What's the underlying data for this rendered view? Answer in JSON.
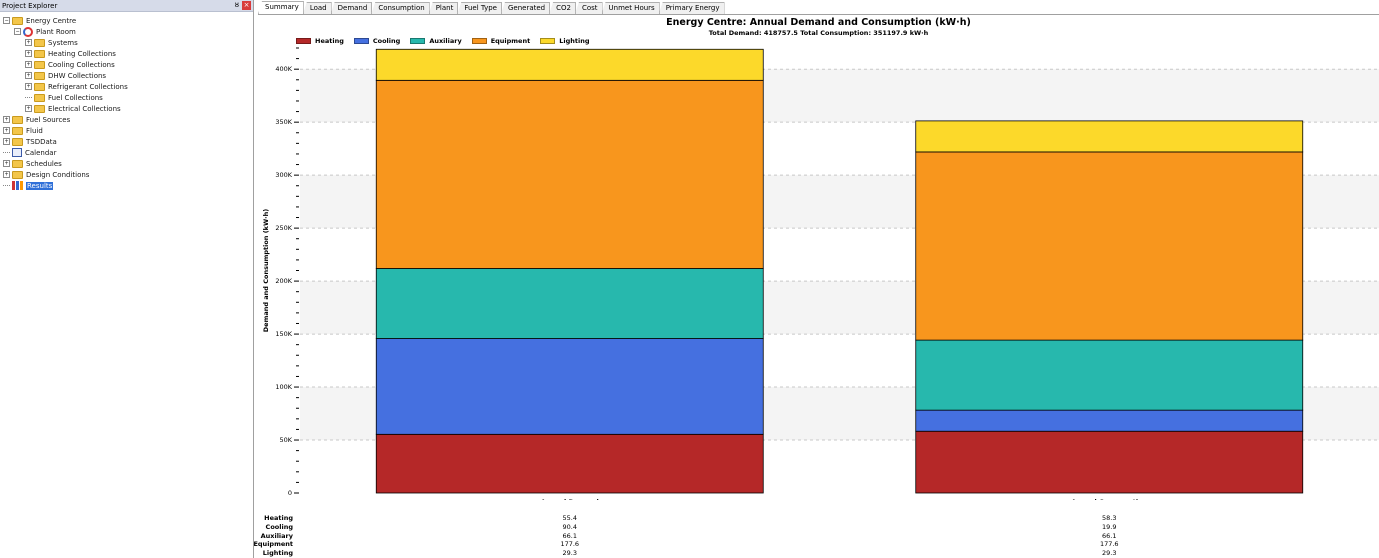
{
  "explorer": {
    "title": "Project Explorer",
    "pin_glyph": "ȣ",
    "close_glyph": "×",
    "nodes": [
      {
        "label": "Energy Centre",
        "icon": "folder-icon",
        "expander": "−",
        "level": 0
      },
      {
        "label": "Plant Room",
        "icon": "plant-room-icon",
        "expander": "−",
        "level": 1
      },
      {
        "label": "Systems",
        "icon": "folder-icon",
        "expander": "+",
        "level": 2
      },
      {
        "label": "Heating Collections",
        "icon": "folder-icon",
        "expander": "+",
        "level": 2
      },
      {
        "label": "Cooling Collections",
        "icon": "folder-icon",
        "expander": "+",
        "level": 2
      },
      {
        "label": "DHW Collections",
        "icon": "folder-icon",
        "expander": "+",
        "level": 2
      },
      {
        "label": "Refrigerant Collections",
        "icon": "folder-icon",
        "expander": "+",
        "level": 2
      },
      {
        "label": "Fuel Collections",
        "icon": "folder-icon",
        "expander": "",
        "level": 2
      },
      {
        "label": "Electrical Collections",
        "icon": "folder-icon",
        "expander": "+",
        "level": 2
      },
      {
        "label": "Fuel Sources",
        "icon": "folder-icon",
        "expander": "+",
        "level": 0
      },
      {
        "label": "Fluid",
        "icon": "folder-icon",
        "expander": "+",
        "level": 0
      },
      {
        "label": "TSDData",
        "icon": "folder-icon",
        "expander": "+",
        "level": 0
      },
      {
        "label": "Calendar",
        "icon": "calendar-icon",
        "expander": "",
        "level": 0
      },
      {
        "label": "Schedules",
        "icon": "folder-icon",
        "expander": "+",
        "level": 0
      },
      {
        "label": "Design Conditions",
        "icon": "folder-icon",
        "expander": "+",
        "level": 0
      },
      {
        "label": "Results",
        "icon": "results-icon",
        "expander": "",
        "level": 0,
        "selected": true
      }
    ]
  },
  "tabs": [
    "Summary",
    "Load",
    "Demand",
    "Consumption",
    "Plant",
    "Fuel Type",
    "Generated",
    "CO2",
    "Cost",
    "Unmet Hours",
    "Primary Energy"
  ],
  "active_tab": "Summary",
  "chart_data": {
    "type": "bar",
    "stacked": true,
    "title": "Energy Centre: Annual Demand and Consumption (kW·h)",
    "subtitle": "Total Demand: 418757.5  Total Consumption: 351197.9 kW·h",
    "ylabel": "Demand and Consumption (kW·h)",
    "ylim": [
      0,
      420000
    ],
    "yticks": [
      0,
      50000,
      100000,
      150000,
      200000,
      250000,
      300000,
      350000,
      400000
    ],
    "ytick_labels": [
      "0",
      "50K",
      "100K",
      "150K",
      "200K",
      "250K",
      "300K",
      "350K",
      "400K"
    ],
    "categories": [
      "Annual Demand",
      "Annual Consumption"
    ],
    "legend_position": "top-left",
    "grid": "horizontal-dashed",
    "series": [
      {
        "name": "Heating",
        "color": "#b52828",
        "values": [
          55400,
          58300
        ]
      },
      {
        "name": "Cooling",
        "color": "#4570e0",
        "values": [
          90400,
          19900
        ]
      },
      {
        "name": "Auxiliary",
        "color": "#27b8ad",
        "values": [
          66100,
          66100
        ]
      },
      {
        "name": "Equipment",
        "color": "#f8961d",
        "values": [
          177600,
          177600
        ]
      },
      {
        "name": "Lighting",
        "color": "#fcd92a",
        "values": [
          29300,
          29300
        ]
      }
    ],
    "table": {
      "rows": [
        "Heating",
        "Cooling",
        "Auxiliary",
        "Equipment",
        "Lighting"
      ],
      "values": [
        [
          "55.4",
          "58.3"
        ],
        [
          "90.4",
          "19.9"
        ],
        [
          "66.1",
          "66.1"
        ],
        [
          "177.6",
          "177.6"
        ],
        [
          "29.3",
          "29.3"
        ]
      ]
    }
  }
}
